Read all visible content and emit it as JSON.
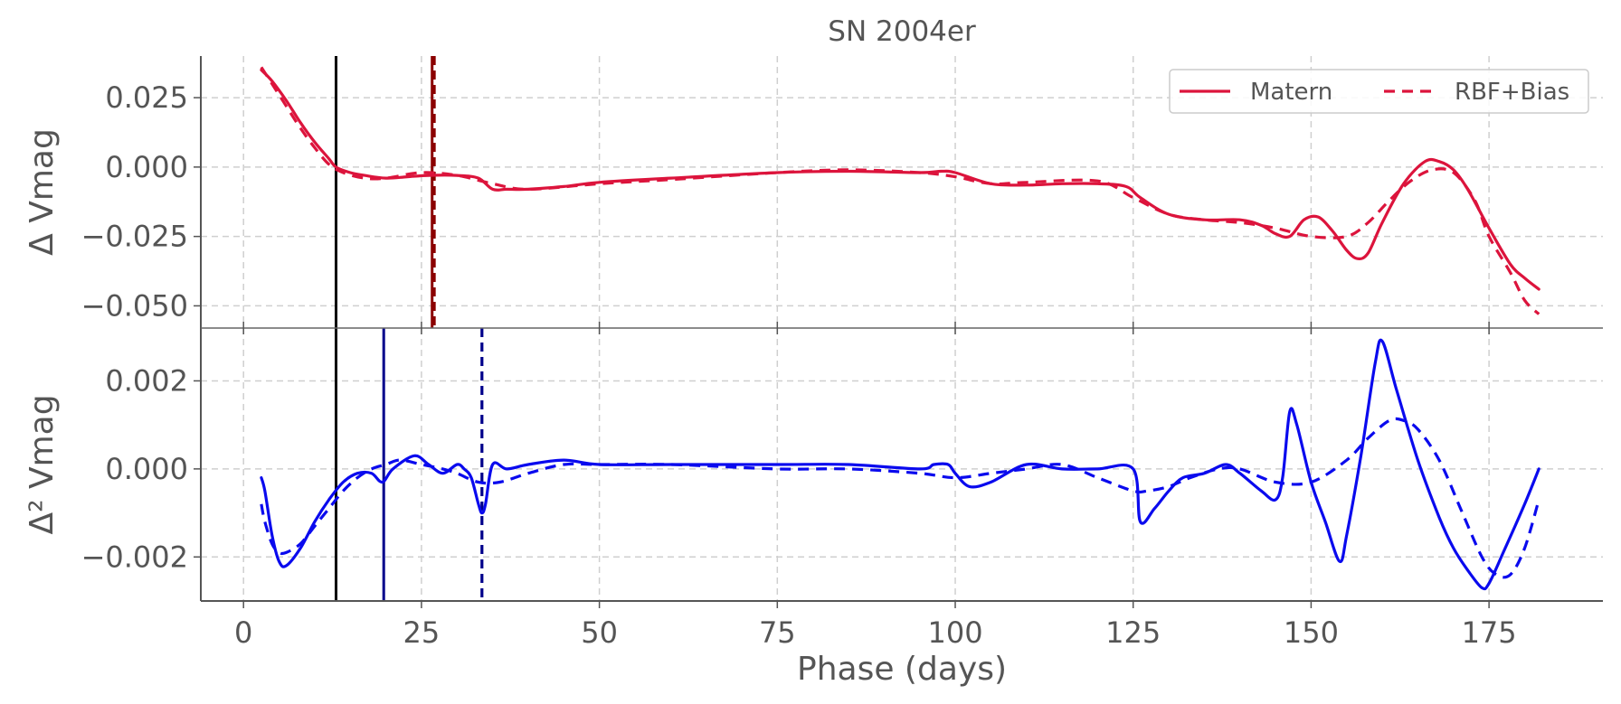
{
  "chart_data": {
    "type": "line",
    "title": "SN 2004er",
    "xlabel": "Phase (days)",
    "xlim": [
      -6,
      191
    ],
    "xticks": [
      0,
      25,
      50,
      75,
      100,
      125,
      150,
      175
    ],
    "grid": true,
    "legend": {
      "placement": "top-right",
      "entries": [
        {
          "name": "Matern",
          "style": "solid"
        },
        {
          "name": "RBF+Bias",
          "style": "dashed"
        }
      ]
    },
    "panels": [
      {
        "id": "top",
        "ylabel": "Δ Vmag",
        "ylim": [
          -0.058,
          0.04
        ],
        "yticks": [
          0.025,
          0.0,
          -0.025,
          -0.05
        ],
        "ytick_labels": [
          "0.025",
          "0.000",
          "−0.025",
          "−0.050"
        ],
        "color": "#dc143c",
        "vlines": [
          {
            "x": 13,
            "color": "#000000",
            "style": "solid"
          },
          {
            "x": 26.5,
            "color": "#8b0000",
            "style": "solid"
          },
          {
            "x": 26.8,
            "color": "#8b0000",
            "style": "dashed"
          }
        ],
        "series": [
          {
            "name": "Matern",
            "style": "solid",
            "x": [
              2.5,
              4,
              6,
              8,
              10,
              12,
              13,
              15,
              17,
              20,
              23,
              26,
              30,
              33,
              35,
              37,
              40,
              45,
              50,
              60,
              75,
              85,
              95,
              98,
              100,
              105,
              110,
              115,
              120,
              124,
              126,
              130,
              135,
              140,
              143,
              145,
              147,
              149,
              151,
              153,
              155,
              156.5,
              158,
              160,
              163,
              166,
              168,
              170,
              172,
              175,
              178,
              180,
              182
            ],
            "y": [
              0.035,
              0.031,
              0.024,
              0.016,
              0.009,
              0.003,
              0.0,
              -0.002,
              -0.003,
              -0.004,
              -0.0035,
              -0.003,
              -0.003,
              -0.004,
              -0.008,
              -0.008,
              -0.008,
              -0.007,
              -0.0055,
              -0.004,
              -0.002,
              -0.0015,
              -0.002,
              -0.0015,
              -0.002,
              -0.006,
              -0.0065,
              -0.006,
              -0.006,
              -0.007,
              -0.011,
              -0.017,
              -0.019,
              -0.019,
              -0.021,
              -0.024,
              -0.025,
              -0.019,
              -0.018,
              -0.023,
              -0.03,
              -0.033,
              -0.031,
              -0.02,
              -0.006,
              0.002,
              0.002,
              -0.001,
              -0.008,
              -0.022,
              -0.035,
              -0.04,
              -0.044
            ]
          },
          {
            "name": "RBF+Bias",
            "style": "dashed",
            "x": [
              2.5,
              4,
              6,
              8,
              10,
              12,
              14,
              17,
              20,
              25,
              30,
              35,
              40,
              50,
              60,
              75,
              85,
              95,
              100,
              105,
              110,
              120,
              125,
              130,
              135,
              140,
              145,
              150,
              155,
              158,
              161,
              164,
              167,
              170,
              173,
              175,
              178,
              180,
              182
            ],
            "y": [
              0.036,
              0.03,
              0.022,
              0.014,
              0.007,
              0.001,
              -0.002,
              -0.004,
              -0.004,
              -0.002,
              -0.003,
              -0.006,
              -0.008,
              -0.006,
              -0.0045,
              -0.002,
              -0.001,
              -0.002,
              -0.0035,
              -0.006,
              -0.0055,
              -0.005,
              -0.011,
              -0.017,
              -0.019,
              -0.02,
              -0.022,
              -0.025,
              -0.025,
              -0.02,
              -0.012,
              -0.005,
              -0.001,
              -0.002,
              -0.012,
              -0.025,
              -0.038,
              -0.048,
              -0.053
            ]
          }
        ]
      },
      {
        "id": "bottom",
        "ylabel": "Δ² Vmag",
        "ylim": [
          -0.003,
          0.0032
        ],
        "yticks": [
          0.002,
          0.0,
          -0.002
        ],
        "ytick_labels": [
          "0.002",
          "0.000",
          "−0.002"
        ],
        "color": "#0a0aee",
        "vlines": [
          {
            "x": 13,
            "color": "#000000",
            "style": "solid"
          },
          {
            "x": 19.7,
            "color": "#00008b",
            "style": "solid"
          },
          {
            "x": 33.5,
            "color": "#00008b",
            "style": "dashed"
          }
        ],
        "series": [
          {
            "name": "Matern",
            "style": "solid",
            "x": [
              2.5,
              3,
              4,
              5,
              6,
              8,
              10,
              12,
              14,
              16,
              18,
              19.5,
              21,
              24,
              26,
              28,
              30,
              31,
              32,
              33,
              33.5,
              34,
              35,
              37,
              40,
              45,
              50,
              60,
              75,
              85,
              95,
              97,
              99,
              100,
              102,
              105,
              110,
              115,
              120,
              125,
              126,
              128,
              130,
              132,
              135,
              138,
              140,
              143,
              145,
              146,
              147,
              148,
              150,
              152,
              154,
              155,
              157,
              159,
              160,
              162,
              165,
              168,
              170,
              172,
              174,
              175,
              177,
              180,
              182
            ],
            "y": [
              -0.0002,
              -0.0005,
              -0.0015,
              -0.0021,
              -0.0022,
              -0.0018,
              -0.0012,
              -0.0007,
              -0.0003,
              -0.0001,
              -0.0001,
              -0.0003,
              0.0,
              0.0003,
              0.0001,
              -0.0001,
              0.0001,
              0.0,
              -0.0002,
              -0.0008,
              -0.001,
              -0.0008,
              0.0001,
              0.0,
              0.0001,
              0.0002,
              0.0001,
              0.0001,
              0.0001,
              0.0001,
              0.0,
              0.0001,
              0.0001,
              -0.0001,
              -0.0004,
              -0.0003,
              0.0001,
              0.0,
              0.0,
              0.0,
              -0.0012,
              -0.0009,
              -0.0005,
              -0.0002,
              -0.0001,
              0.0001,
              -0.0001,
              -0.0005,
              -0.0007,
              -0.0002,
              0.0013,
              0.001,
              -0.0003,
              -0.0012,
              -0.0021,
              -0.0015,
              0.0003,
              0.0024,
              0.0029,
              0.0018,
              0.0002,
              -0.0011,
              -0.0018,
              -0.0023,
              -0.0027,
              -0.0026,
              -0.0019,
              -0.0008,
              0.0
            ]
          },
          {
            "name": "RBF+Bias",
            "style": "dashed",
            "x": [
              2.5,
              3,
              4,
              5,
              6,
              8,
              10,
              12,
              14,
              16,
              18,
              20,
              22,
              25,
              28,
              30,
              33,
              36,
              40,
              45,
              50,
              60,
              75,
              85,
              95,
              100,
              105,
              110,
              115,
              120,
              125,
              127,
              130,
              133,
              137,
              140,
              145,
              150,
              155,
              158,
              161,
              163,
              165,
              168,
              171,
              174,
              176,
              178,
              180,
              182
            ],
            "y": [
              -0.0008,
              -0.0012,
              -0.0017,
              -0.0019,
              -0.0019,
              -0.0017,
              -0.0013,
              -0.0009,
              -0.0005,
              -0.0002,
              0.0,
              0.0001,
              0.0002,
              0.0001,
              0.0,
              -0.0001,
              -0.0003,
              -0.0003,
              -0.0001,
              0.0001,
              0.0001,
              0.0001,
              0.0,
              0.0,
              -0.0001,
              -0.0002,
              -0.0001,
              0.0,
              0.0001,
              -0.0002,
              -0.0005,
              -0.0005,
              -0.0004,
              -0.0002,
              0.0,
              0.0,
              -0.0003,
              -0.0003,
              0.0002,
              0.0007,
              0.0011,
              0.0011,
              0.0009,
              0.0002,
              -0.0009,
              -0.002,
              -0.0024,
              -0.0024,
              -0.0018,
              -0.0007
            ]
          }
        ]
      }
    ]
  }
}
